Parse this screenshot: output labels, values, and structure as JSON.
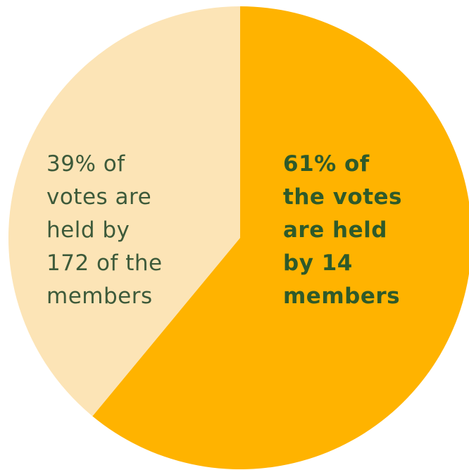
{
  "chart_data": {
    "type": "pie",
    "title": "",
    "slices": [
      {
        "value": 61,
        "color": "#FFB300",
        "label_color": "#2E5A2A",
        "label_weight": "bold",
        "label_lines": [
          "61% of",
          "the votes",
          "are held",
          "by 14",
          "members"
        ]
      },
      {
        "value": 39,
        "color": "#FCE4B6",
        "label_color": "#3D5A3A",
        "label_weight": "normal",
        "label_lines": [
          "39% of",
          "votes are",
          "held by",
          "172 of the",
          "members"
        ]
      }
    ]
  }
}
